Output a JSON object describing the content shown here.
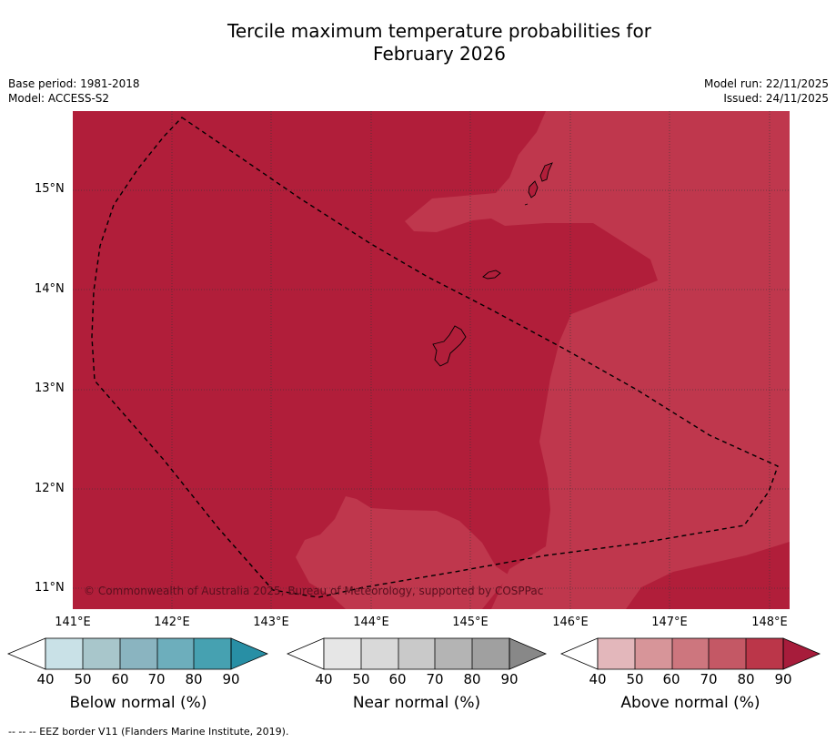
{
  "title": {
    "line1": "Tercile maximum temperature probabilities for",
    "line2": "February 2026"
  },
  "meta": {
    "base_period": "Base period: 1981-2018",
    "model": "Model: ACCESS-S2",
    "model_run": "Model run: 22/11/2025",
    "issued": "Issued: 24/11/2025"
  },
  "map": {
    "lat_labels": [
      "15°N",
      "14°N",
      "13°N",
      "12°N",
      "11°N"
    ],
    "lon_labels": [
      "141°E",
      "142°E",
      "143°E",
      "144°E",
      "145°E",
      "146°E",
      "147°E",
      "148°E"
    ],
    "attribution": "© Commonwealth of Australia 2025, Bureau of Meteorology, supported by COSPPac",
    "fill_90_color": "#b11e3a",
    "fill_80_color": "#bf374d"
  },
  "colorbars": [
    {
      "label": "Below normal (%)",
      "ticks": [
        "40",
        "50",
        "60",
        "70",
        "80",
        "90"
      ],
      "colors": [
        "#ffffff",
        "#c9e1e7",
        "#a8c6cb",
        "#8ab4c0",
        "#6daebc",
        "#46a1b1",
        "#288fa5"
      ]
    },
    {
      "label": "Near normal (%)",
      "ticks": [
        "40",
        "50",
        "60",
        "70",
        "80",
        "90"
      ],
      "colors": [
        "#ffffff",
        "#e6e6e6",
        "#d9d9d9",
        "#c9c9c9",
        "#b4b4b4",
        "#a0a0a0",
        "#888888"
      ]
    },
    {
      "label": "Above normal (%)",
      "ticks": [
        "40",
        "50",
        "60",
        "70",
        "80",
        "90"
      ],
      "colors": [
        "#ffffff",
        "#e3b7bb",
        "#d79599",
        "#cd767e",
        "#c45865",
        "#bb3649",
        "#a71c3b"
      ]
    }
  ],
  "footnote": "--  --  -- EEZ border V11 (Flanders Marine Institute, 2019)."
}
